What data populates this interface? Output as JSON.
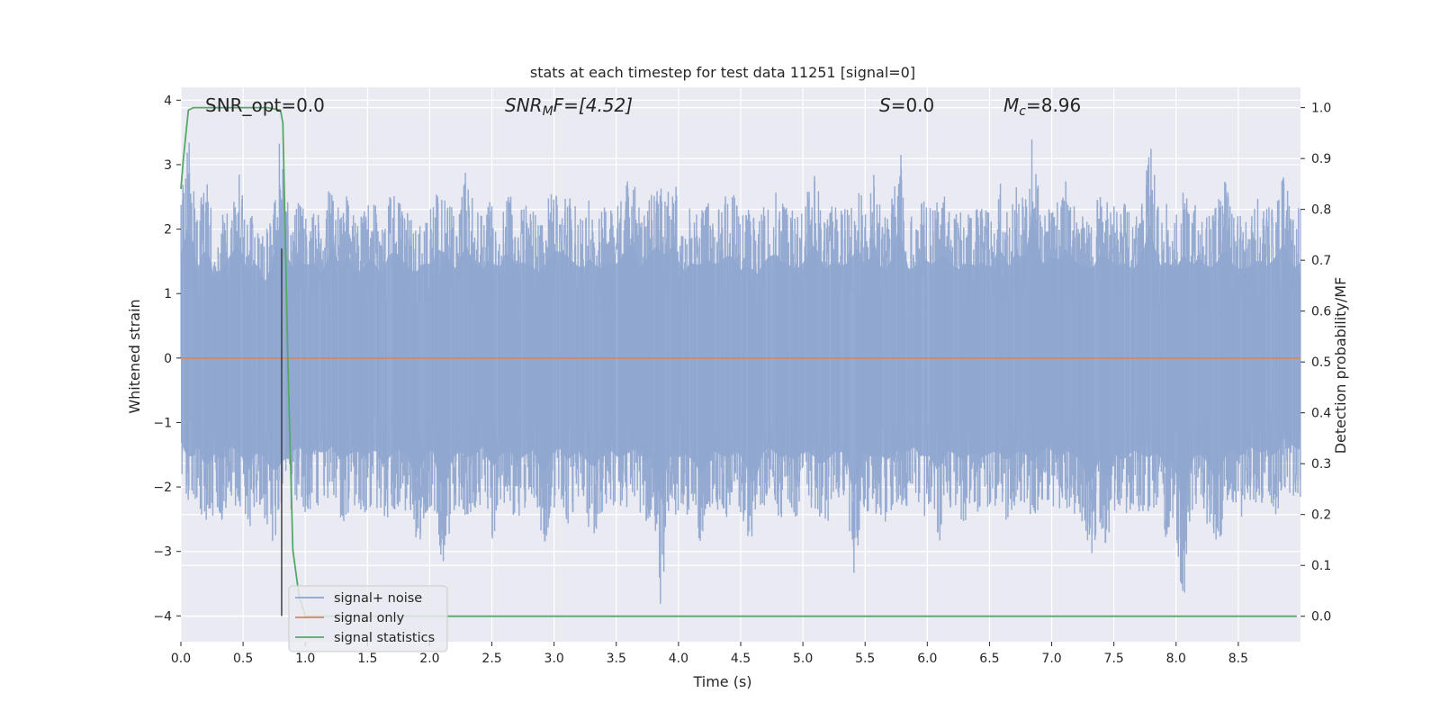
{
  "chart_data": {
    "type": "line",
    "title": "stats at each timestep for test data 11251 [signal=0]",
    "xlabel": "Time (s)",
    "ylabel_left": "Whitened strain",
    "ylabel_right": "Detection probability/MF",
    "xlim": [
      0,
      9.0
    ],
    "ylim_left": [
      -4.4,
      4.2
    ],
    "ylim_right": [
      -0.05,
      1.04
    ],
    "x_ticks": [
      "0.0",
      "0.5",
      "1.0",
      "1.5",
      "2.0",
      "2.5",
      "3.0",
      "3.5",
      "4.0",
      "4.5",
      "5.0",
      "5.5",
      "6.0",
      "6.5",
      "7.0",
      "7.5",
      "8.0",
      "8.5"
    ],
    "y_ticks_left": [
      "−4",
      "−3",
      "−2",
      "−1",
      "0",
      "1",
      "2",
      "3",
      "4"
    ],
    "y_ticks_right": [
      "0.0",
      "0.1",
      "0.2",
      "0.3",
      "0.4",
      "0.5",
      "0.6",
      "0.7",
      "0.8",
      "0.9",
      "1.0"
    ],
    "grid": true,
    "legend_position": "lower-left",
    "annotations": {
      "snr_opt": "SNR_opt=0.0",
      "snr_mf_base": "SNR",
      "snr_mf_sub": "M",
      "snr_mf_rest": "F=[4.52]",
      "s_italic": "S",
      "s_rest": "=0.0",
      "mc_base": "M",
      "mc_sub": "c",
      "mc_rest": "=8.96"
    },
    "series": [
      {
        "name": "signal+ noise",
        "color": "#8fa6cf",
        "axis": "left",
        "description_values": "whitened noise, amplitude roughly within [-4, 4]",
        "envelope_upper": [
          2.6,
          3.4,
          2.2,
          2.9,
          2.0,
          2.3,
          2.6,
          2.9,
          2.1,
          2.5,
          1.9,
          2.3,
          3.8,
          2.1,
          2.5,
          2.3,
          2.4,
          2.0,
          2.9,
          2.3,
          2.6,
          2.1,
          2.3,
          2.5,
          2.0,
          2.7,
          2.6,
          2.3,
          2.1,
          2.4,
          2.3,
          2.8,
          2.5,
          2.2,
          2.9,
          2.4,
          2.2,
          2.5,
          2.2,
          2.7,
          2.3,
          2.4,
          2.3,
          2.1,
          2.5,
          2.7,
          2.6,
          2.4,
          2.2,
          2.5,
          2.2,
          2.4,
          2.3,
          2.6,
          3.0,
          2.2,
          2.6,
          2.8,
          2.5,
          2.9,
          2.1,
          2.4,
          2.3,
          2.5,
          2.3,
          2.5,
          2.6,
          2.2,
          2.3,
          2.1,
          2.5,
          2.6,
          2.4,
          2.3,
          2.2,
          2.6,
          2.9,
          2.2,
          2.4,
          2.3,
          2.4,
          2.8,
          2.2,
          2.9,
          2.1,
          2.4,
          3.4,
          2.2,
          2.3,
          2.5,
          2.3,
          2.6,
          2.4,
          2.2,
          2.4,
          2.3,
          2.4,
          2.2,
          2.9,
          2.2,
          2.7,
          2.4,
          3.7,
          2.2,
          2.6,
          2.4,
          2.8,
          2.4,
          2.3,
          2.2,
          2.6,
          2.5,
          2.3,
          2.4,
          2.2,
          2.5,
          3.4,
          2.3,
          2.4,
          2.2,
          2.6,
          2.3,
          2.5,
          2.2,
          2.4,
          2.8,
          2.3,
          2.2,
          2.3,
          2.5,
          2.3,
          2.5,
          2.9,
          2.2,
          2.4
        ],
        "envelope_lower": [
          -2.1,
          -2.6,
          -2.2,
          -2.8,
          -2.4,
          -2.6,
          -2.2,
          -2.4,
          -2.7,
          -2.3,
          -2.5,
          -2.9,
          -2.6,
          -2.4,
          -2.2,
          -2.5,
          -2.3,
          -2.4,
          -2.2,
          -2.6,
          -2.4,
          -2.3,
          -2.5,
          -2.2,
          -2.7,
          -2.4,
          -2.3,
          -2.5,
          -3.1,
          -2.4,
          -2.3,
          -3.5,
          -2.6,
          -2.3,
          -2.5,
          -2.4,
          -2.2,
          -2.8,
          -2.4,
          -2.3,
          -2.6,
          -2.4,
          -2.3,
          -3.0,
          -2.4,
          -2.2,
          -2.6,
          -2.3,
          -2.5,
          -2.8,
          -2.4,
          -2.3,
          -2.5,
          -2.4,
          -2.2,
          -2.6,
          -2.4,
          -3.9,
          -2.3,
          -2.5,
          -2.4,
          -2.6,
          -3.0,
          -2.3,
          -2.4,
          -2.5,
          -2.3,
          -2.6,
          -3.3,
          -2.4,
          -2.2,
          -2.5,
          -2.4,
          -2.6,
          -2.3,
          -2.4,
          -2.7,
          -2.5,
          -2.3,
          -2.4,
          -3.6,
          -2.3,
          -2.5,
          -2.4,
          -2.6,
          -2.3,
          -2.4,
          -2.2,
          -2.5,
          -2.4,
          -2.9,
          -2.3,
          -2.4,
          -2.6,
          -2.3,
          -2.5,
          -2.4,
          -2.3,
          -2.6,
          -2.4,
          -2.3,
          -2.6,
          -2.4,
          -2.2,
          -2.5,
          -2.3,
          -2.4,
          -2.6,
          -3.3,
          -2.5,
          -3.3,
          -2.4,
          -2.6,
          -2.3,
          -2.4,
          -2.5,
          -2.3,
          -2.8,
          -2.4,
          -4.0,
          -2.5,
          -2.4,
          -2.6,
          -3.2,
          -2.4,
          -2.3,
          -2.5,
          -2.2,
          -2.4,
          -2.3,
          -2.5,
          -2.0,
          -2.2,
          -2.3
        ]
      },
      {
        "name": "signal only",
        "color": "#dd8452",
        "axis": "left",
        "x": [
          0,
          9.0
        ],
        "y": [
          0,
          0
        ]
      },
      {
        "name": "signal statistics",
        "color": "#55a868",
        "axis": "right",
        "x": [
          0.0,
          0.02,
          0.06,
          0.1,
          0.15,
          0.3,
          0.5,
          0.7,
          0.8,
          0.82,
          0.86,
          0.9,
          0.95,
          1.0,
          1.5,
          3.0,
          5.0,
          7.0,
          8.97
        ],
        "y": [
          0.84,
          0.9,
          0.995,
          1.0,
          1.0,
          1.0,
          1.0,
          1.0,
          0.995,
          0.97,
          0.5,
          0.13,
          0.04,
          0.0,
          0.0,
          0.0,
          0.0,
          0.0,
          0.0
        ]
      }
    ],
    "vertical_marker": {
      "x": 0.81,
      "y_from": -4.0,
      "y_to": 1.7,
      "color": "#404040"
    }
  }
}
